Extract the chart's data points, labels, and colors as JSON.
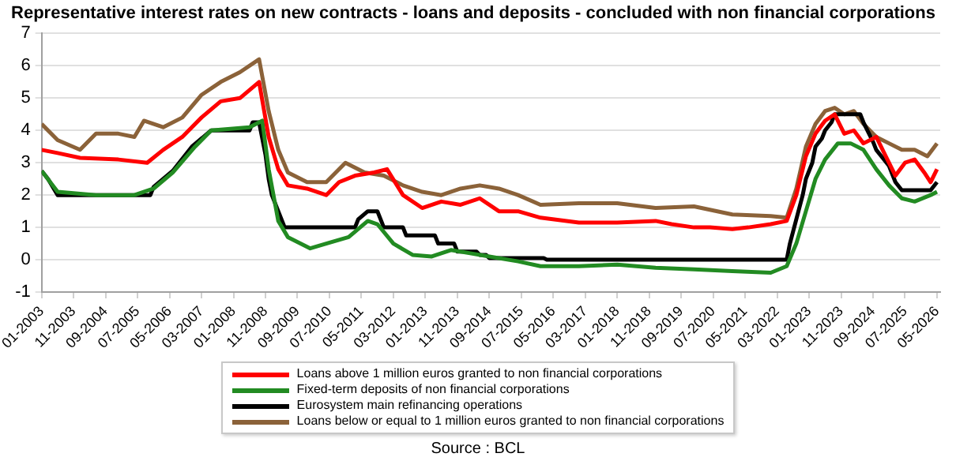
{
  "chart_data": {
    "type": "line",
    "title": "Representative interest rates on new contracts - loans and deposits - concluded with non financial corporations",
    "annotations": [
      "Source : BCL"
    ],
    "xlim": [
      "2003-01",
      "2026-06"
    ],
    "xticks": [
      {
        "value": "2003-01",
        "label": "01-2003"
      },
      {
        "value": "2003-11",
        "label": "11-2003"
      },
      {
        "value": "2004-09",
        "label": "09-2004"
      },
      {
        "value": "2005-07",
        "label": "07-2005"
      },
      {
        "value": "2006-05",
        "label": "05-2006"
      },
      {
        "value": "2007-03",
        "label": "03-2007"
      },
      {
        "value": "2008-01",
        "label": "01-2008"
      },
      {
        "value": "2008-11",
        "label": "11-2008"
      },
      {
        "value": "2009-09",
        "label": "09-2009"
      },
      {
        "value": "2010-07",
        "label": "07-2010"
      },
      {
        "value": "2011-05",
        "label": "05-2011"
      },
      {
        "value": "2012-03",
        "label": "03-2012"
      },
      {
        "value": "2013-01",
        "label": "01-2013"
      },
      {
        "value": "2013-11",
        "label": "11-2013"
      },
      {
        "value": "2014-09",
        "label": "09-2014"
      },
      {
        "value": "2015-07",
        "label": "07-2015"
      },
      {
        "value": "2016-05",
        "label": "05-2016"
      },
      {
        "value": "2017-03",
        "label": "03-2017"
      },
      {
        "value": "2018-01",
        "label": "01-2018"
      },
      {
        "value": "2018-11",
        "label": "11-2018"
      },
      {
        "value": "2019-09",
        "label": "09-2019"
      },
      {
        "value": "2020-07",
        "label": "07-2020"
      },
      {
        "value": "2021-05",
        "label": "05-2021"
      },
      {
        "value": "2022-03",
        "label": "03-2022"
      },
      {
        "value": "2023-01",
        "label": "01-2023"
      },
      {
        "value": "2023-11",
        "label": "11-2023"
      },
      {
        "value": "2024-09",
        "label": "09-2024"
      },
      {
        "value": "2025-07",
        "label": "07-2025"
      },
      {
        "value": "2026-05",
        "label": "05-2026"
      }
    ],
    "ylim": [
      -1,
      7
    ],
    "yticks": [
      -1,
      0,
      1,
      2,
      3,
      4,
      5,
      6,
      7
    ],
    "grid": "y",
    "legend": "bottom",
    "marker": "none",
    "line_style": "solid",
    "series": [
      {
        "name": "Loans above 1 million euros granted to non financial corporations",
        "color": "#ff0000",
        "x": [
          "2003-01",
          "2003-06",
          "2004-01",
          "2005-01",
          "2005-10",
          "2006-03",
          "2006-09",
          "2007-03",
          "2007-09",
          "2008-03",
          "2008-09",
          "2008-12",
          "2009-03",
          "2009-06",
          "2009-12",
          "2010-06",
          "2010-10",
          "2011-03",
          "2011-09",
          "2012-01",
          "2012-06",
          "2012-12",
          "2013-06",
          "2013-12",
          "2014-06",
          "2014-12",
          "2015-06",
          "2016-01",
          "2017-01",
          "2018-01",
          "2019-01",
          "2019-06",
          "2020-01",
          "2020-06",
          "2021-01",
          "2021-06",
          "2022-01",
          "2022-06",
          "2022-09",
          "2022-12",
          "2023-03",
          "2023-06",
          "2023-09",
          "2023-12",
          "2024-03",
          "2024-06",
          "2024-10",
          "2025-01",
          "2025-04",
          "2025-07",
          "2025-10",
          "2026-01",
          "2026-03",
          "2026-05"
        ],
        "values": [
          3.4,
          3.3,
          3.15,
          3.1,
          3.0,
          3.4,
          3.8,
          4.4,
          4.9,
          5.0,
          5.5,
          3.8,
          2.8,
          2.3,
          2.2,
          2.0,
          2.4,
          2.6,
          2.7,
          2.8,
          2.0,
          1.6,
          1.8,
          1.7,
          1.9,
          1.5,
          1.5,
          1.3,
          1.15,
          1.15,
          1.2,
          1.1,
          1.0,
          1.0,
          0.95,
          1.0,
          1.1,
          1.2,
          2.0,
          3.2,
          3.9,
          4.3,
          4.5,
          3.9,
          4.0,
          3.6,
          3.8,
          3.2,
          2.6,
          3.0,
          3.1,
          2.7,
          2.4,
          2.8
        ]
      },
      {
        "name": "Fixed-term deposits of non financial corporations",
        "color": "#228b22",
        "x": [
          "2003-01",
          "2003-06",
          "2004-06",
          "2005-06",
          "2005-12",
          "2006-06",
          "2007-01",
          "2007-06",
          "2008-06",
          "2008-10",
          "2008-12",
          "2009-03",
          "2009-06",
          "2010-01",
          "2010-06",
          "2011-01",
          "2011-07",
          "2011-10",
          "2012-03",
          "2012-09",
          "2013-03",
          "2013-09",
          "2014-03",
          "2014-09",
          "2015-06",
          "2016-01",
          "2017-01",
          "2018-01",
          "2019-01",
          "2020-01",
          "2021-01",
          "2022-01",
          "2022-06",
          "2022-09",
          "2022-12",
          "2023-03",
          "2023-06",
          "2023-10",
          "2024-02",
          "2024-06",
          "2024-10",
          "2025-02",
          "2025-06",
          "2025-10",
          "2026-03",
          "2026-05"
        ],
        "values": [
          2.75,
          2.1,
          2.0,
          2.0,
          2.2,
          2.7,
          3.5,
          4.0,
          4.1,
          4.3,
          2.8,
          1.2,
          0.7,
          0.35,
          0.5,
          0.7,
          1.2,
          1.1,
          0.5,
          0.15,
          0.1,
          0.3,
          0.2,
          0.1,
          -0.05,
          -0.2,
          -0.2,
          -0.15,
          -0.25,
          -0.3,
          -0.35,
          -0.4,
          -0.2,
          0.5,
          1.5,
          2.5,
          3.1,
          3.6,
          3.6,
          3.4,
          2.8,
          2.3,
          1.9,
          1.8,
          2.0,
          2.1
        ]
      },
      {
        "name": "Eurosystem main refinancing operations",
        "color": "#000000",
        "x": [
          "2003-01",
          "2003-03",
          "2003-06",
          "2005-11",
          "2005-12",
          "2006-03",
          "2006-06",
          "2006-08",
          "2006-10",
          "2006-12",
          "2007-03",
          "2007-06",
          "2008-06",
          "2008-07",
          "2008-09",
          "2008-10",
          "2008-11",
          "2008-12",
          "2009-01",
          "2009-03",
          "2009-04",
          "2009-05",
          "2011-03",
          "2011-04",
          "2011-07",
          "2011-10",
          "2011-11",
          "2011-12",
          "2012-06",
          "2012-07",
          "2013-04",
          "2013-05",
          "2013-10",
          "2013-11",
          "2014-05",
          "2014-06",
          "2014-08",
          "2014-09",
          "2016-02",
          "2016-03",
          "2022-06",
          "2022-07",
          "2022-09",
          "2022-11",
          "2022-12",
          "2023-02",
          "2023-03",
          "2023-05",
          "2023-06",
          "2023-08",
          "2023-09",
          "2024-05",
          "2024-06",
          "2024-09",
          "2024-10",
          "2024-12",
          "2025-02",
          "2025-03",
          "2025-04",
          "2025-06",
          "2026-03",
          "2026-05"
        ],
        "values": [
          2.75,
          2.5,
          2.0,
          2.0,
          2.25,
          2.5,
          2.75,
          3.0,
          3.25,
          3.5,
          3.75,
          4.0,
          4.0,
          4.25,
          4.25,
          3.75,
          3.25,
          2.5,
          2.0,
          1.5,
          1.25,
          1.0,
          1.0,
          1.25,
          1.5,
          1.5,
          1.25,
          1.0,
          1.0,
          0.75,
          0.75,
          0.5,
          0.5,
          0.25,
          0.25,
          0.15,
          0.15,
          0.05,
          0.05,
          0,
          0,
          0.5,
          1.25,
          2.0,
          2.5,
          3.0,
          3.5,
          3.75,
          4.0,
          4.25,
          4.5,
          4.5,
          4.25,
          3.65,
          3.4,
          3.15,
          2.9,
          2.65,
          2.4,
          2.15,
          2.15,
          2.4
        ]
      },
      {
        "name": "Loans below or equal to 1 million euros granted to non financial corporations",
        "color": "#8b6239",
        "x": [
          "2003-01",
          "2003-06",
          "2004-01",
          "2004-06",
          "2005-01",
          "2005-06",
          "2005-09",
          "2006-03",
          "2006-09",
          "2007-03",
          "2007-09",
          "2008-03",
          "2008-09",
          "2008-12",
          "2009-03",
          "2009-06",
          "2009-12",
          "2010-06",
          "2010-12",
          "2011-06",
          "2011-12",
          "2012-06",
          "2012-12",
          "2013-06",
          "2013-12",
          "2014-06",
          "2014-12",
          "2015-06",
          "2016-01",
          "2017-01",
          "2018-01",
          "2019-01",
          "2020-01",
          "2021-01",
          "2022-01",
          "2022-06",
          "2022-09",
          "2022-12",
          "2023-03",
          "2023-06",
          "2023-09",
          "2023-12",
          "2024-03",
          "2024-06",
          "2024-10",
          "2025-02",
          "2025-06",
          "2025-10",
          "2026-02",
          "2026-05"
        ],
        "values": [
          4.2,
          3.7,
          3.4,
          3.9,
          3.9,
          3.8,
          4.3,
          4.1,
          4.4,
          5.1,
          5.5,
          5.8,
          6.2,
          4.6,
          3.4,
          2.7,
          2.4,
          2.4,
          3.0,
          2.7,
          2.6,
          2.3,
          2.1,
          2.0,
          2.2,
          2.3,
          2.2,
          2.0,
          1.7,
          1.75,
          1.75,
          1.6,
          1.65,
          1.4,
          1.35,
          1.3,
          2.2,
          3.5,
          4.2,
          4.6,
          4.7,
          4.5,
          4.6,
          4.2,
          3.8,
          3.6,
          3.4,
          3.4,
          3.2,
          3.6
        ]
      }
    ]
  }
}
